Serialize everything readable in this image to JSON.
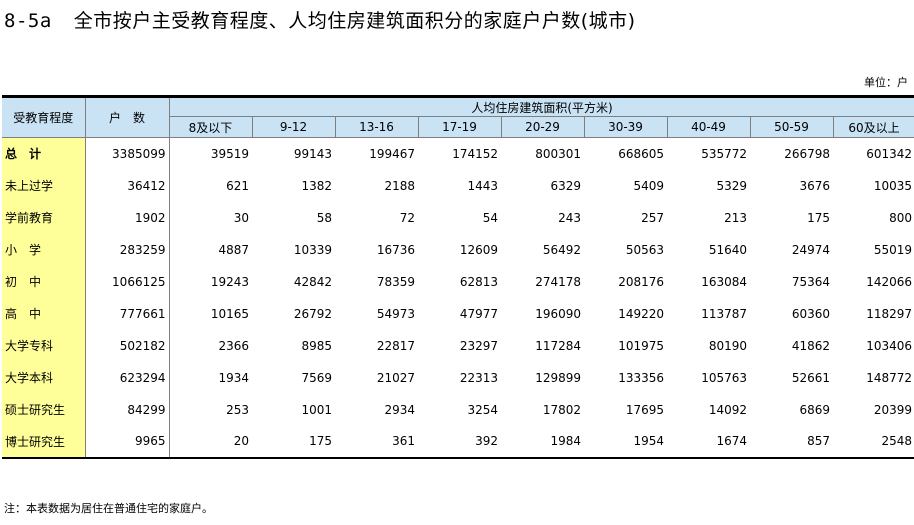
{
  "title": {
    "code": "8-5a",
    "text": "全市按户主受教育程度、人均住房建筑面积分的家庭户户数(城市)"
  },
  "unit": "单位：户",
  "table": {
    "corner_label": "受教育程度",
    "total_label": "户　数",
    "group_label": "人均住房建筑面积(平方米)",
    "columns": [
      "8及以下",
      "9-12",
      "13-16",
      "17-19",
      "20-29",
      "30-39",
      "40-49",
      "50-59",
      "60及以上"
    ],
    "rows": [
      {
        "label": "总　计",
        "bold": true,
        "total": "3385099",
        "values": [
          "39519",
          "99143",
          "199467",
          "174152",
          "800301",
          "668605",
          "535772",
          "266798",
          "601342"
        ]
      },
      {
        "label": "未上过学",
        "total": "36412",
        "values": [
          "621",
          "1382",
          "2188",
          "1443",
          "6329",
          "5409",
          "5329",
          "3676",
          "10035"
        ]
      },
      {
        "label": "学前教育",
        "total": "1902",
        "values": [
          "30",
          "58",
          "72",
          "54",
          "243",
          "257",
          "213",
          "175",
          "800"
        ]
      },
      {
        "label": "小　学",
        "total": "283259",
        "values": [
          "4887",
          "10339",
          "16736",
          "12609",
          "56492",
          "50563",
          "51640",
          "24974",
          "55019"
        ]
      },
      {
        "label": "初　中",
        "total": "1066125",
        "values": [
          "19243",
          "42842",
          "78359",
          "62813",
          "274178",
          "208176",
          "163084",
          "75364",
          "142066"
        ]
      },
      {
        "label": "高　中",
        "total": "777661",
        "values": [
          "10165",
          "26792",
          "54973",
          "47977",
          "196090",
          "149220",
          "113787",
          "60360",
          "118297"
        ]
      },
      {
        "label": "大学专科",
        "total": "502182",
        "values": [
          "2366",
          "8985",
          "22817",
          "23297",
          "117284",
          "101975",
          "80190",
          "41862",
          "103406"
        ]
      },
      {
        "label": "大学本科",
        "total": "623294",
        "values": [
          "1934",
          "7569",
          "21027",
          "22313",
          "129899",
          "133356",
          "105763",
          "52661",
          "148772"
        ]
      },
      {
        "label": "硕士研究生",
        "total": "84299",
        "values": [
          "253",
          "1001",
          "2934",
          "3254",
          "17802",
          "17695",
          "14092",
          "6869",
          "20399"
        ]
      },
      {
        "label": "博士研究生",
        "total": "9965",
        "values": [
          "20",
          "175",
          "361",
          "392",
          "1984",
          "1954",
          "1674",
          "857",
          "2548"
        ]
      }
    ]
  },
  "note": "注：本表数据为居住在普通住宅的家庭户。"
}
